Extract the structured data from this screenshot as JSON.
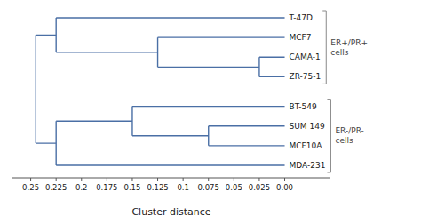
{
  "chart_data": {
    "type": "dendrogram",
    "xlabel": "Cluster distance",
    "xlim": [
      0.268,
      -0.045
    ],
    "xticks": [
      0.25,
      0.225,
      0.2,
      0.175,
      0.15,
      0.125,
      0.1,
      0.075,
      0.05,
      0.025,
      {
        "value": 0,
        "label": "0.00"
      }
    ],
    "tree": {
      "value": 0.245,
      "children": [
        {
          "value": 0.225,
          "label": "ER+/PR+\ncells",
          "children": [
            "T-47D",
            {
              "value": 0.125,
              "children": [
                "MCF7",
                {
                  "value": 0.025,
                  "children": [
                    "CAMA-1",
                    "ZR-75-1"
                  ]
                }
              ]
            }
          ]
        },
        {
          "value": 0.225,
          "label": "ER-/PR-\ncells",
          "children": [
            {
              "value": 0.15,
              "children": [
                "BT-549",
                {
                  "value": 0.075,
                  "children": [
                    "SUM 149",
                    "MCF10A"
                  ]
                }
              ]
            },
            "MDA-231"
          ]
        }
      ]
    }
  }
}
